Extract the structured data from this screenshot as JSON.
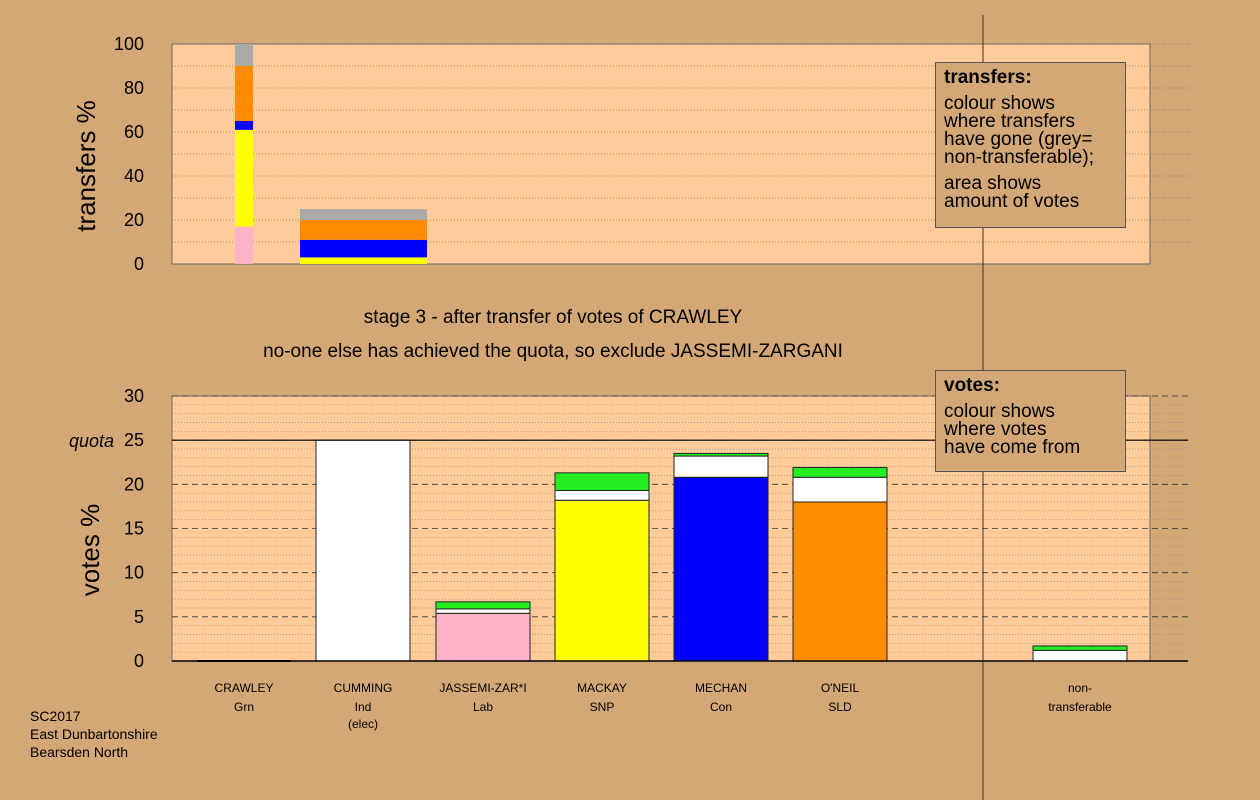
{
  "chart_data": [
    {
      "type": "bar",
      "stacked": true,
      "ylabel": "transfers %",
      "ylim": [
        0,
        100
      ],
      "yticks": [
        0,
        20,
        40,
        60,
        80,
        100
      ],
      "columns": [
        {
          "candidate": "CRAWLEY",
          "segments": [
            {
              "color": "#ffb3c6",
              "value": 17
            },
            {
              "color": "#ffff00",
              "value": 44
            },
            {
              "color": "#0000ff",
              "value": 4
            },
            {
              "color": "#ff8c00",
              "value": 25
            },
            {
              "color": "#aaaaaa",
              "value": 10
            }
          ]
        },
        {
          "candidate": "JASSEMI-ZARGANI",
          "segments": [
            {
              "color": "#ffff00",
              "value": 3
            },
            {
              "color": "#0000ff",
              "value": 8
            },
            {
              "color": "#ff8c00",
              "value": 9
            },
            {
              "color": "#aaaaaa",
              "value": 5
            }
          ]
        }
      ],
      "legend": {
        "title": "transfers:",
        "p1": [
          "colour shows",
          "where transfers",
          "have gone (grey=",
          "non-transferable);"
        ],
        "p2": [
          "area shows",
          "amount of votes"
        ]
      }
    },
    {
      "type": "bar",
      "stacked": true,
      "ylabel": "votes %",
      "ylim": [
        0,
        30
      ],
      "yticks": [
        0,
        5,
        10,
        15,
        20,
        25,
        30
      ],
      "quota": 25,
      "quota_label": "quota",
      "categories": [
        {
          "name": "CRAWLEY",
          "party": "Grn",
          "note": "",
          "segments": []
        },
        {
          "name": "CUMMING",
          "party": "Ind",
          "note": "(elec)",
          "segments": [
            {
              "color": "#ffffff",
              "value": 25
            }
          ]
        },
        {
          "name": "JASSEMI-ZAR*I",
          "party": "Lab",
          "note": "",
          "segments": [
            {
              "color": "#ffb3c6",
              "value": 5.4
            },
            {
              "color": "#ffffff",
              "value": 0.5
            },
            {
              "color": "#22ee22",
              "value": 0.8
            }
          ]
        },
        {
          "name": "MACKAY",
          "party": "SNP",
          "note": "",
          "segments": [
            {
              "color": "#ffff00",
              "value": 18.2
            },
            {
              "color": "#ffffff",
              "value": 1.1
            },
            {
              "color": "#22ee22",
              "value": 2.0
            }
          ]
        },
        {
          "name": "MECHAN",
          "party": "Con",
          "note": "",
          "segments": [
            {
              "color": "#0000ff",
              "value": 20.8
            },
            {
              "color": "#ffffff",
              "value": 2.4
            },
            {
              "color": "#22ee22",
              "value": 0.3
            }
          ]
        },
        {
          "name": "O'NEIL",
          "party": "SLD",
          "note": "",
          "segments": [
            {
              "color": "#ff8c00",
              "value": 18.0
            },
            {
              "color": "#ffffff",
              "value": 2.8
            },
            {
              "color": "#22ee22",
              "value": 1.1
            }
          ]
        },
        {
          "name": "non-",
          "party": "transferable",
          "note": "",
          "segments": [
            {
              "color": "#ffffff",
              "value": 1.2
            },
            {
              "color": "#22ee22",
              "value": 0.5
            }
          ]
        }
      ],
      "legend": {
        "title": "votes:",
        "p1": [
          "colour shows",
          "where votes",
          "have come from"
        ]
      }
    }
  ],
  "stage_text": "stage 3 - after transfer of votes of CRAWLEY",
  "stage_note": "no-one else has achieved the quota, so exclude JASSEMI-ZARGANI",
  "footer": [
    "SC2017",
    "East Dunbartonshire",
    "Bearsden North"
  ],
  "colors": {
    "background": "#d4a876",
    "plot": "#ffcc99"
  }
}
